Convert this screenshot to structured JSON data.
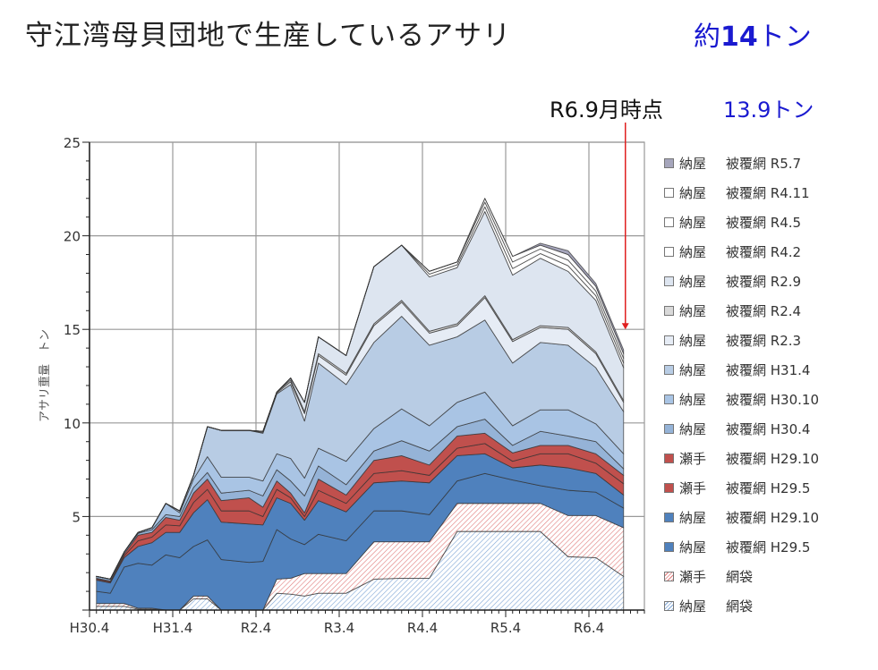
{
  "title": "守江湾母貝団地で生産しているアサリ",
  "title_total_prefix": "約",
  "title_total_number": "14",
  "title_total_unit": "トン",
  "annotation": {
    "label": "R6.9月時点",
    "value": "13.9トン",
    "arrow_color": "#e02020",
    "value_color": "#1a1ad0"
  },
  "chart_data": {
    "type": "area",
    "stacked": true,
    "ylabel": "アサリ重量　トン",
    "xlabel": "",
    "ylim": [
      0,
      25
    ],
    "yticks": [
      "5",
      "10",
      "15",
      "20",
      "25"
    ],
    "xticks": [
      "H30.4",
      "H31.4",
      "R2.4",
      "R3.4",
      "R4.4",
      "R5.4",
      "R6.4"
    ],
    "xlim": [
      "H30.4",
      "R6.12"
    ],
    "grid": true,
    "legend_position": "right",
    "x": [
      "H30.5",
      "H30.7",
      "H30.9",
      "H30.11",
      "H31.1",
      "H31.3",
      "R1.5",
      "R1.7",
      "R1.9",
      "R1.11",
      "R2.3",
      "R2.5",
      "R2.7",
      "R2.9",
      "R2.11",
      "R3.1",
      "R3.5",
      "R3.9",
      "R4.1",
      "R4.5",
      "R4.9",
      "R5.1",
      "R5.5",
      "R5.9",
      "R6.1",
      "R6.5",
      "R6.9"
    ],
    "series": [
      {
        "place": "納屋",
        "name": "網袋",
        "color": "#7fa6d6",
        "pattern": "hatch",
        "values": [
          0.2,
          0.2,
          0.2,
          0.05,
          0.05,
          0,
          0,
          0.6,
          0.6,
          0,
          0,
          0,
          0.9,
          0.85,
          0.75,
          0.9,
          0.9,
          1.65,
          1.7,
          1.7,
          4.2,
          4.2,
          4.2,
          4.2,
          2.85,
          2.8,
          1.8
        ]
      },
      {
        "place": "瀬手",
        "name": "網袋",
        "color": "#e07a7a",
        "pattern": "hatch",
        "values": [
          0.15,
          0.15,
          0.15,
          0.05,
          0.05,
          0,
          0,
          0.15,
          0.15,
          0,
          0,
          0,
          0.75,
          0.85,
          1.2,
          1.05,
          1.05,
          2.0,
          1.95,
          1.95,
          1.5,
          1.5,
          1.5,
          1.5,
          2.2,
          2.25,
          2.6
        ]
      },
      {
        "place": "納屋",
        "name": "被覆網 H29.5",
        "color": "#4f81bd",
        "values": [
          0.65,
          0.55,
          1.95,
          2.4,
          2.3,
          2.95,
          2.8,
          2.65,
          3.0,
          2.7,
          2.55,
          2.6,
          2.65,
          2.1,
          1.55,
          2.1,
          1.75,
          1.65,
          1.65,
          1.45,
          1.2,
          1.6,
          1.25,
          0.95,
          1.35,
          1.25,
          1.05
        ]
      },
      {
        "place": "納屋",
        "name": "被覆網 H29.10",
        "color": "#4f81bd",
        "values": [
          0.6,
          0.55,
          0.5,
          0.9,
          1.2,
          1.2,
          1.35,
          1.8,
          2.15,
          2.0,
          2.05,
          1.95,
          1.7,
          1.9,
          1.3,
          1.8,
          1.55,
          1.5,
          1.6,
          1.7,
          1.35,
          1.05,
          0.65,
          1.1,
          1.2,
          1.0,
          0.7
        ]
      },
      {
        "place": "瀬手",
        "name": "被覆網 H29.5",
        "color": "#c0504d",
        "values": [
          0.05,
          0.05,
          0.1,
          0.3,
          0.3,
          0.4,
          0.35,
          0.55,
          0.55,
          0.6,
          0.7,
          0.45,
          0.45,
          0.3,
          0.2,
          0.55,
          0.45,
          0.5,
          0.55,
          0.4,
          0.4,
          0.55,
          0.35,
          0.6,
          0.75,
          0.55,
          0.6
        ]
      },
      {
        "place": "瀬手",
        "name": "被覆網 H29.10",
        "color": "#c0504d",
        "values": [
          0.05,
          0.05,
          0.1,
          0.3,
          0.25,
          0.4,
          0.3,
          0.5,
          0.55,
          0.55,
          0.7,
          0.5,
          0.45,
          0.25,
          0.2,
          0.6,
          0.45,
          0.7,
          0.8,
          0.55,
          0.65,
          0.55,
          0.45,
          0.45,
          0.45,
          0.5,
          0.45
        ]
      },
      {
        "place": "納屋",
        "name": "被覆網 H30.4",
        "color": "#95b3d7",
        "values": [
          0.1,
          0.1,
          0.1,
          0.1,
          0.15,
          0.15,
          0.2,
          0.3,
          0.35,
          0.4,
          0.4,
          0.6,
          0.6,
          0.65,
          0.9,
          0.7,
          0.55,
          0.5,
          0.8,
          0.75,
          0.5,
          0.75,
          0.4,
          0.75,
          0.5,
          0.65,
          0.35
        ]
      },
      {
        "place": "納屋",
        "name": "被覆網 H30.10",
        "color": "#a9c4e4",
        "values": [
          0,
          0,
          0,
          0.05,
          0.1,
          0.6,
          0.2,
          0.45,
          0.85,
          0.85,
          0.7,
          0.8,
          0.85,
          1.2,
          0.95,
          0.95,
          1.25,
          1.2,
          1.7,
          1.35,
          1.3,
          1.45,
          1.05,
          1.15,
          1.4,
          0.95,
          0.8
        ]
      },
      {
        "place": "納屋",
        "name": "被覆網 H31.4",
        "color": "#b8cce4",
        "values": [
          0,
          0,
          0,
          0,
          0,
          0,
          0.1,
          0.2,
          1.6,
          2.5,
          2.5,
          2.55,
          3.2,
          3.95,
          3.05,
          4.55,
          4.1,
          4.6,
          4.95,
          4.3,
          3.5,
          3.85,
          3.35,
          3.6,
          3.45,
          3.0,
          2.25
        ]
      },
      {
        "place": "納屋",
        "name": "被覆網 R2.3",
        "color": "#e6ecf5",
        "values": [
          0,
          0,
          0,
          0,
          0,
          0,
          0,
          0,
          0,
          0,
          0,
          0.05,
          0.05,
          0.15,
          0.4,
          0.4,
          0.5,
          0.9,
          0.75,
          0.65,
          0.6,
          1.2,
          1.15,
          0.8,
          0.85,
          0.75,
          0.5
        ]
      },
      {
        "place": "納屋",
        "name": "被覆網 R2.4",
        "color": "#d9d9d9",
        "values": [
          0,
          0,
          0,
          0,
          0,
          0,
          0,
          0,
          0,
          0,
          0,
          0.05,
          0.05,
          0.1,
          0.1,
          0.1,
          0.1,
          0.1,
          0.1,
          0.1,
          0.1,
          0.1,
          0.1,
          0.1,
          0.1,
          0.1,
          0.1
        ]
      },
      {
        "place": "納屋",
        "name": "被覆網 R2.9",
        "color": "#dde5f0",
        "values": [
          0,
          0,
          0,
          0,
          0,
          0,
          0,
          0,
          0,
          0,
          0,
          0,
          0,
          0.1,
          0.5,
          0.9,
          0.95,
          3.05,
          2.95,
          2.9,
          3.0,
          4.5,
          3.45,
          3.6,
          3.0,
          2.75,
          1.75
        ]
      },
      {
        "place": "納屋",
        "name": "被覆網 R4.2",
        "color": "#ffffff",
        "values": [
          0,
          0,
          0,
          0,
          0,
          0,
          0,
          0,
          0,
          0,
          0,
          0,
          0,
          0,
          0,
          0,
          0,
          0,
          0,
          0.15,
          0.15,
          0.25,
          0.35,
          0.25,
          0.3,
          0.25,
          0.25
        ]
      },
      {
        "place": "納屋",
        "name": "被覆網 R4.5",
        "color": "#ffffff",
        "values": [
          0,
          0,
          0,
          0,
          0,
          0,
          0,
          0,
          0,
          0,
          0,
          0,
          0,
          0,
          0,
          0,
          0,
          0,
          0,
          0.15,
          0.15,
          0.25,
          0.35,
          0.25,
          0.3,
          0.25,
          0.25
        ]
      },
      {
        "place": "納屋",
        "name": "被覆網 R4.11",
        "color": "#ffffff",
        "values": [
          0,
          0,
          0,
          0,
          0,
          0,
          0,
          0,
          0,
          0,
          0,
          0,
          0,
          0,
          0,
          0,
          0,
          0,
          0,
          0,
          0,
          0.2,
          0.3,
          0.2,
          0.3,
          0.25,
          0.25
        ]
      },
      {
        "place": "納屋",
        "name": "被覆網 R5.7",
        "color": "#a6a6bc",
        "values": [
          0,
          0,
          0,
          0,
          0,
          0,
          0,
          0,
          0,
          0,
          0,
          0,
          0,
          0,
          0,
          0,
          0,
          0,
          0,
          0,
          0,
          0,
          0,
          0.1,
          0.2,
          0.15,
          0.2
        ]
      }
    ]
  }
}
